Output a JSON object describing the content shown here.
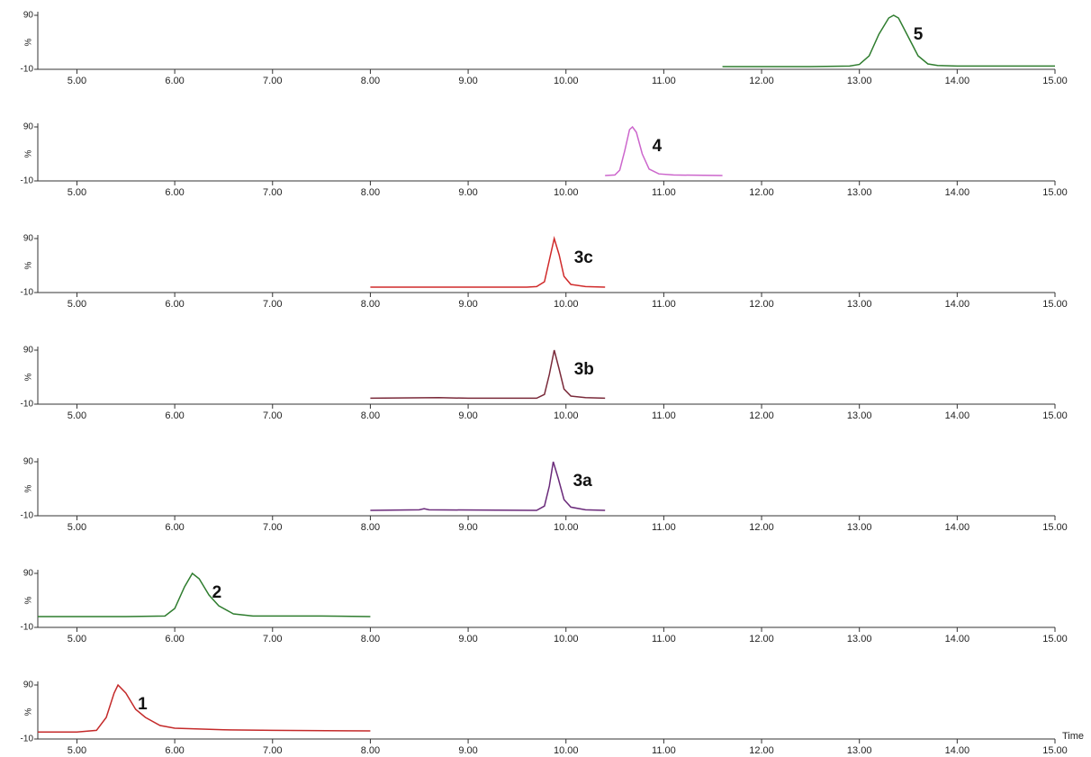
{
  "chart_data": [
    {
      "type": "line",
      "color": "#2f7d2f",
      "annotation": "5",
      "ylabel": "%",
      "x": [
        11.6,
        12.5,
        12.9,
        13.0,
        13.1,
        13.2,
        13.3,
        13.35,
        13.4,
        13.5,
        13.6,
        13.7,
        13.8,
        14.0,
        14.5,
        15.0
      ],
      "values": [
        -5,
        -5,
        -4,
        -1,
        15,
        55,
        85,
        90,
        85,
        50,
        15,
        0,
        -3,
        -4,
        -4,
        -4
      ],
      "xlim": [
        4.6,
        15.0
      ],
      "ylim": [
        -10,
        90
      ],
      "yticks": [
        -10,
        90
      ],
      "xticks": [
        {
          "value": 5,
          "label": "5.00"
        },
        {
          "value": 6,
          "label": "6.00"
        },
        {
          "value": 7,
          "label": "7.00"
        },
        {
          "value": 8,
          "label": "8.00"
        },
        {
          "value": 9,
          "label": "9.00"
        },
        {
          "value": 10,
          "label": "10.00"
        },
        {
          "value": 11,
          "label": "11.00"
        },
        {
          "value": 12,
          "label": "12.00"
        },
        {
          "value": 13,
          "label": "13.00"
        },
        {
          "value": 14,
          "label": "14.00"
        },
        {
          "value": 15,
          "label": "15.00"
        }
      ]
    },
    {
      "type": "line",
      "color": "#cc66cc",
      "annotation": "4",
      "ylabel": "%",
      "x": [
        10.4,
        10.5,
        10.55,
        10.6,
        10.65,
        10.68,
        10.72,
        10.78,
        10.85,
        10.95,
        11.1,
        11.6
      ],
      "values": [
        0,
        1,
        10,
        45,
        85,
        90,
        80,
        40,
        12,
        3,
        1,
        0
      ],
      "xlim": [
        4.6,
        15.0
      ],
      "ylim": [
        -10,
        90
      ],
      "yticks": [
        -10,
        90
      ],
      "xticks": [
        {
          "value": 5,
          "label": "5.00"
        },
        {
          "value": 6,
          "label": "6.00"
        },
        {
          "value": 7,
          "label": "7.00"
        },
        {
          "value": 8,
          "label": "8.00"
        },
        {
          "value": 9,
          "label": "9.00"
        },
        {
          "value": 10,
          "label": "10.00"
        },
        {
          "value": 11,
          "label": "11.00"
        },
        {
          "value": 12,
          "label": "12.00"
        },
        {
          "value": 13,
          "label": "13.00"
        },
        {
          "value": 14,
          "label": "14.00"
        },
        {
          "value": 15,
          "label": "15.00"
        }
      ]
    },
    {
      "type": "line",
      "color": "#d02a2a",
      "annotation": "3c",
      "ylabel": "%",
      "x": [
        8.0,
        9.6,
        9.7,
        9.78,
        9.83,
        9.88,
        9.93,
        9.98,
        10.05,
        10.2,
        10.4
      ],
      "values": [
        0,
        0,
        1,
        10,
        50,
        90,
        60,
        20,
        5,
        1,
        0
      ],
      "xlim": [
        4.6,
        15.0
      ],
      "ylim": [
        -10,
        90
      ],
      "yticks": [
        -10,
        90
      ],
      "xticks": [
        {
          "value": 5,
          "label": "5.00"
        },
        {
          "value": 6,
          "label": "6.00"
        },
        {
          "value": 7,
          "label": "7.00"
        },
        {
          "value": 8,
          "label": "8.00"
        },
        {
          "value": 9,
          "label": "9.00"
        },
        {
          "value": 10,
          "label": "10.00"
        },
        {
          "value": 11,
          "label": "11.00"
        },
        {
          "value": 12,
          "label": "12.00"
        },
        {
          "value": 13,
          "label": "13.00"
        },
        {
          "value": 14,
          "label": "14.00"
        },
        {
          "value": 15,
          "label": "15.00"
        }
      ]
    },
    {
      "type": "line",
      "color": "#7a2a3a",
      "annotation": "3b",
      "ylabel": "%",
      "x": [
        8.0,
        8.7,
        9.0,
        9.7,
        9.78,
        9.83,
        9.88,
        9.93,
        9.98,
        10.05,
        10.2,
        10.4
      ],
      "values": [
        1,
        2,
        1,
        1,
        8,
        45,
        90,
        55,
        18,
        5,
        2,
        1
      ],
      "xlim": [
        4.6,
        15.0
      ],
      "ylim": [
        -10,
        90
      ],
      "yticks": [
        -10,
        90
      ],
      "xticks": [
        {
          "value": 5,
          "label": "5.00"
        },
        {
          "value": 6,
          "label": "6.00"
        },
        {
          "value": 7,
          "label": "7.00"
        },
        {
          "value": 8,
          "label": "8.00"
        },
        {
          "value": 9,
          "label": "9.00"
        },
        {
          "value": 10,
          "label": "10.00"
        },
        {
          "value": 11,
          "label": "11.00"
        },
        {
          "value": 12,
          "label": "12.00"
        },
        {
          "value": 13,
          "label": "13.00"
        },
        {
          "value": 14,
          "label": "14.00"
        },
        {
          "value": 15,
          "label": "15.00"
        }
      ]
    },
    {
      "type": "line",
      "color": "#6a2a7a",
      "annotation": "3a",
      "ylabel": "%",
      "x": [
        8.0,
        8.5,
        8.55,
        8.6,
        9.7,
        9.78,
        9.83,
        9.87,
        9.92,
        9.98,
        10.05,
        10.2,
        10.4
      ],
      "values": [
        0,
        1,
        3,
        1,
        0,
        8,
        45,
        90,
        60,
        20,
        6,
        1,
        0
      ],
      "xlim": [
        4.6,
        15.0
      ],
      "ylim": [
        -10,
        90
      ],
      "yticks": [
        -10,
        90
      ],
      "xticks": [
        {
          "value": 5,
          "label": "5.00"
        },
        {
          "value": 6,
          "label": "6.00"
        },
        {
          "value": 7,
          "label": "7.00"
        },
        {
          "value": 8,
          "label": "8.00"
        },
        {
          "value": 9,
          "label": "9.00"
        },
        {
          "value": 10,
          "label": "10.00"
        },
        {
          "value": 11,
          "label": "11.00"
        },
        {
          "value": 12,
          "label": "12.00"
        },
        {
          "value": 13,
          "label": "13.00"
        },
        {
          "value": 14,
          "label": "14.00"
        },
        {
          "value": 15,
          "label": "15.00"
        }
      ]
    },
    {
      "type": "line",
      "color": "#2f7d2f",
      "annotation": "2",
      "ylabel": "%",
      "x": [
        4.6,
        5.5,
        5.9,
        6.0,
        6.1,
        6.18,
        6.25,
        6.35,
        6.45,
        6.6,
        6.8,
        7.5,
        8.0
      ],
      "values": [
        10,
        10,
        11,
        25,
        65,
        90,
        80,
        50,
        30,
        15,
        11,
        11,
        10
      ],
      "xlim": [
        4.6,
        15.0
      ],
      "ylim": [
        -10,
        90
      ],
      "yticks": [
        -10,
        90
      ],
      "xticks": [
        {
          "value": 5,
          "label": "5.00"
        },
        {
          "value": 6,
          "label": "6.00"
        },
        {
          "value": 7,
          "label": "7.00"
        },
        {
          "value": 8,
          "label": "8.00"
        },
        {
          "value": 9,
          "label": "9.00"
        },
        {
          "value": 10,
          "label": "10.00"
        },
        {
          "value": 11,
          "label": "11.00"
        },
        {
          "value": 12,
          "label": "12.00"
        },
        {
          "value": 13,
          "label": "13.00"
        },
        {
          "value": 14,
          "label": "14.00"
        },
        {
          "value": 15,
          "label": "15.00"
        }
      ]
    },
    {
      "type": "line",
      "color": "#c42a2a",
      "annotation": "1",
      "ylabel": "%",
      "xlabel": "Time",
      "x": [
        4.6,
        5.0,
        5.2,
        5.3,
        5.38,
        5.42,
        5.5,
        5.6,
        5.7,
        5.85,
        6.0,
        6.5,
        7.0,
        8.0
      ],
      "values": [
        3,
        3,
        6,
        30,
        75,
        90,
        75,
        45,
        30,
        15,
        10,
        7,
        6,
        5
      ],
      "xlim": [
        4.6,
        15.0
      ],
      "ylim": [
        -10,
        90
      ],
      "yticks": [
        -10,
        90
      ],
      "xticks": [
        {
          "value": 5,
          "label": "5.00"
        },
        {
          "value": 6,
          "label": "6.00"
        },
        {
          "value": 7,
          "label": "7.00"
        },
        {
          "value": 8,
          "label": "8.00"
        },
        {
          "value": 9,
          "label": "9.00"
        },
        {
          "value": 10,
          "label": "10.00"
        },
        {
          "value": 11,
          "label": "11.00"
        },
        {
          "value": 12,
          "label": "12.00"
        },
        {
          "value": 13,
          "label": "13.00"
        },
        {
          "value": 14,
          "label": "14.00"
        },
        {
          "value": 15,
          "label": "15.00"
        }
      ]
    }
  ]
}
